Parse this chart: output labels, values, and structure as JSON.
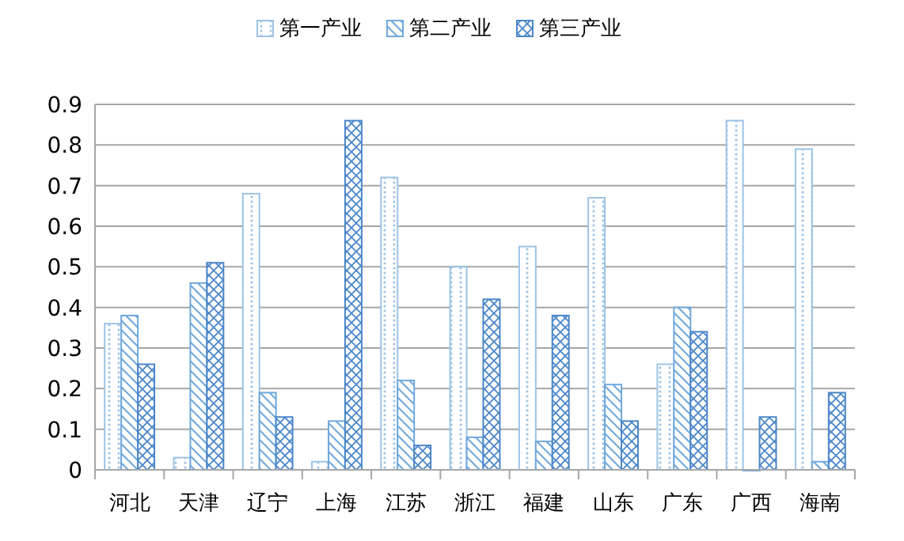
{
  "chart_data": {
    "type": "bar",
    "categories": [
      "河北",
      "天津",
      "辽宁",
      "上海",
      "江苏",
      "浙江",
      "福建",
      "山东",
      "广东",
      "广西",
      "海南"
    ],
    "series": [
      {
        "name": "第一产业",
        "color": "#9dc3e6",
        "values": [
          0.36,
          0.03,
          0.68,
          0.02,
          0.72,
          0.5,
          0.55,
          0.67,
          0.26,
          0.86,
          0.79
        ]
      },
      {
        "name": "第二产业",
        "color": "#6fa8dc",
        "values": [
          0.38,
          0.46,
          0.19,
          0.12,
          0.22,
          0.08,
          0.07,
          0.21,
          0.4,
          0,
          0.02
        ]
      },
      {
        "name": "第三产业",
        "color": "#4a86c8",
        "values": [
          0.26,
          0.51,
          0.13,
          0.86,
          0.06,
          0.42,
          0.38,
          0.12,
          0.34,
          0.13,
          0.19
        ]
      }
    ],
    "ylim": [
      0,
      0.9
    ],
    "yticks": [
      0,
      0.1,
      0.2,
      0.3,
      0.4,
      0.5,
      0.6,
      0.7,
      0.8,
      0.9
    ],
    "grid": "y",
    "legend": "top"
  }
}
